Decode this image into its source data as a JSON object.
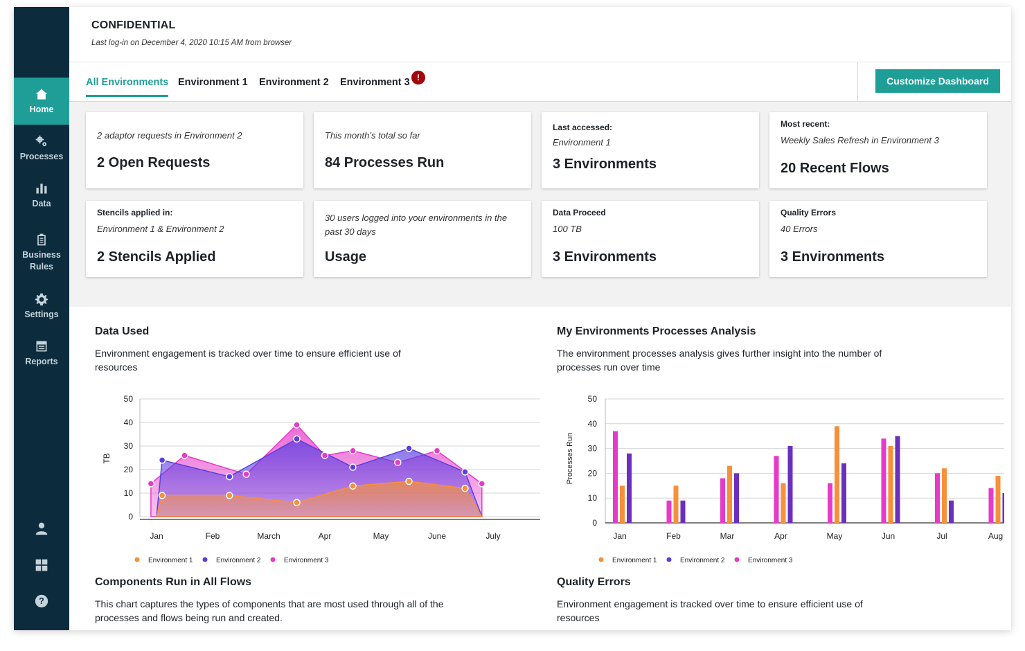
{
  "nav": {
    "items": [
      {
        "label": "Home",
        "icon": "home-icon"
      },
      {
        "label": "Processes",
        "icon": "gears-icon"
      },
      {
        "label": "Data",
        "icon": "bar-chart-icon"
      },
      {
        "label": "Business Rules",
        "icon": "clipboard-icon"
      },
      {
        "label": "Settings",
        "icon": "gear-icon"
      },
      {
        "label": "Reports",
        "icon": "report-icon"
      }
    ],
    "bottom_icons": [
      "user-icon",
      "apps-grid-icon",
      "help-icon"
    ]
  },
  "header": {
    "title": "CONFIDENTIAL",
    "subtitle": "Last log-in on December 4, 2020 10:15 AM from browser"
  },
  "tabs": [
    {
      "label": "All Environments",
      "active": true
    },
    {
      "label": "Environment 1"
    },
    {
      "label": "Environment 2"
    },
    {
      "label": "Environment 3",
      "alert": "!"
    }
  ],
  "customize_button": "Customize Dashboard",
  "cards": [
    {
      "label": "",
      "desc": "2 adaptor requests in Environment 2",
      "value": "2 Open Requests"
    },
    {
      "label": "",
      "desc": "This month’s total so far",
      "value": "84 Processes Run"
    },
    {
      "label": "Last accessed:",
      "desc": "Environment 1",
      "value": "3 Environments"
    },
    {
      "label": "Most recent:",
      "desc": "Weekly Sales Refresh in Environment 3",
      "value": "20 Recent Flows"
    },
    {
      "label": "Stencils applied in:",
      "desc": "Environment 1 & Environment 2",
      "value": "2 Stencils Applied"
    },
    {
      "label": "",
      "desc": "30 users logged into your environments in the past 30 days",
      "value": "Usage"
    },
    {
      "label": "Data Proceed",
      "desc": "100 TB",
      "value": "3 Environments"
    },
    {
      "label": "Quality Errors",
      "desc": "40 Errors",
      "value": "3 Environments"
    }
  ],
  "panels": {
    "data_used": {
      "title": "Data Used",
      "desc": "Environment engagement is tracked over time to ensure efficient use of resources"
    },
    "processes_analysis": {
      "title": "My Environments Processes Analysis",
      "desc": "The environment processes analysis gives further insight into the number of processes run over time"
    },
    "components": {
      "title": "Components Run in All Flows",
      "desc": "This chart captures the types of components that are most used through all of the processes and flows being run and created."
    },
    "quality_errors": {
      "title": "Quality Errors",
      "desc": "Environment engagement is tracked over time to ensure efficient use of resources"
    }
  },
  "colors": {
    "accent": "#1f9e98",
    "sidebar": "#0c2c3e",
    "env1": "#f7903a",
    "env2": "#5b3ee0",
    "env3": "#e63ac9",
    "env2_bar": "#6b2fbf",
    "alert": "#a0070d"
  },
  "chart_data": [
    {
      "type": "area",
      "ylabel": "TB",
      "ylim": [
        0,
        50
      ],
      "yticks": [
        0,
        10,
        20,
        30,
        40,
        50
      ],
      "xticks": [
        "Jan",
        "Feb",
        "March",
        "Apr",
        "May",
        "June",
        "July"
      ],
      "grid": true,
      "legend_position": "bottom-left",
      "series": [
        {
          "name": "Environment 1",
          "points": [
            [
              0.0,
              0
            ],
            [
              0.1,
              9
            ],
            [
              1.3,
              9
            ],
            [
              2.5,
              6
            ],
            [
              3.5,
              13
            ],
            [
              4.5,
              15
            ],
            [
              5.5,
              12
            ],
            [
              5.8,
              0
            ]
          ]
        },
        {
          "name": "Environment 2",
          "points": [
            [
              0.0,
              0
            ],
            [
              0.1,
              24
            ],
            [
              1.3,
              17
            ],
            [
              2.5,
              33
            ],
            [
              3.5,
              21
            ],
            [
              4.5,
              29
            ],
            [
              5.5,
              19
            ],
            [
              5.8,
              0
            ]
          ]
        },
        {
          "name": "Environment 3",
          "points": [
            [
              -0.1,
              0
            ],
            [
              -0.1,
              14
            ],
            [
              0.5,
              26
            ],
            [
              1.6,
              18
            ],
            [
              2.5,
              39
            ],
            [
              3.0,
              26
            ],
            [
              3.5,
              28
            ],
            [
              4.3,
              23
            ],
            [
              5.0,
              28
            ],
            [
              5.8,
              14
            ],
            [
              5.8,
              0
            ]
          ]
        }
      ]
    },
    {
      "type": "bar",
      "ylabel": "Processes Run",
      "ylim": [
        0,
        50
      ],
      "yticks": [
        0,
        10,
        20,
        30,
        40,
        50
      ],
      "categories": [
        "Jan",
        "Feb",
        "Mar",
        "Apr",
        "May",
        "Jun",
        "Jul",
        "Aug"
      ],
      "grid": true,
      "legend_position": "bottom-left",
      "legend": [
        "Environment 1",
        "Environment 2",
        "Environment 3"
      ],
      "series": [
        {
          "name": "Environment 3",
          "values": [
            37,
            9,
            18,
            27,
            16,
            34,
            20,
            14
          ]
        },
        {
          "name": "Environment 1",
          "values": [
            15,
            15,
            23,
            16,
            39,
            31,
            22,
            19
          ]
        },
        {
          "name": "Environment 2",
          "values": [
            28,
            9,
            20,
            31,
            24,
            35,
            9,
            12
          ]
        }
      ]
    }
  ]
}
